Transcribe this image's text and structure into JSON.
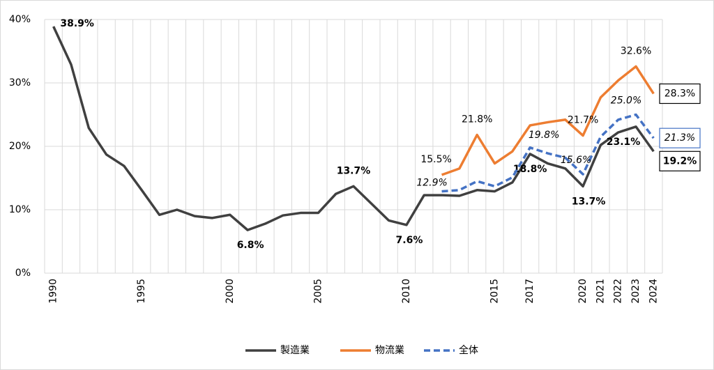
{
  "chart_data": {
    "type": "line",
    "x": [
      1990,
      1991,
      1992,
      1993,
      1994,
      1995,
      1996,
      1997,
      1998,
      1999,
      2000,
      2001,
      2002,
      2003,
      2004,
      2005,
      2006,
      2007,
      2008,
      2009,
      2010,
      2011,
      2012,
      2013,
      2014,
      2015,
      2016,
      2017,
      2018,
      2019,
      2020,
      2021,
      2022,
      2023,
      2024
    ],
    "xlim": [
      1989.5,
      2024.5
    ],
    "xticks": [
      1990,
      1995,
      2000,
      2005,
      2010,
      2015,
      2017,
      2020,
      2021,
      2022,
      2023,
      2024
    ],
    "ylim": [
      0,
      40
    ],
    "yticks": [
      {
        "value": 0,
        "label": "0%"
      },
      {
        "value": 10,
        "label": "10%"
      },
      {
        "value": 20,
        "label": "20%"
      },
      {
        "value": 30,
        "label": "30%"
      },
      {
        "value": 40,
        "label": "40%"
      }
    ],
    "grid": true,
    "legend": "bottom",
    "series": [
      {
        "name": "製造業",
        "color": "#404040",
        "dash": "solid",
        "values": [
          38.9,
          32.9,
          22.9,
          18.7,
          16.9,
          13.1,
          9.2,
          10.0,
          9.0,
          8.7,
          9.2,
          6.8,
          7.8,
          9.1,
          9.5,
          9.5,
          12.5,
          13.7,
          11.0,
          8.3,
          7.6,
          12.3,
          12.3,
          12.2,
          13.1,
          12.9,
          14.3,
          18.8,
          17.3,
          16.5,
          13.7,
          20.2,
          22.2,
          23.1,
          19.2
        ],
        "value_labels": [
          "38.9%",
          null,
          null,
          null,
          null,
          null,
          null,
          null,
          null,
          null,
          null,
          "6.8%",
          null,
          null,
          null,
          null,
          null,
          "13.7%",
          null,
          null,
          "7.6%",
          null,
          null,
          null,
          null,
          null,
          null,
          "18.8%",
          null,
          null,
          "13.7%",
          null,
          null,
          "23.1%",
          "19.2%"
        ]
      },
      {
        "name": "物流業",
        "color": "#ed7d31",
        "dash": "solid",
        "values": [
          null,
          null,
          null,
          null,
          null,
          null,
          null,
          null,
          null,
          null,
          null,
          null,
          null,
          null,
          null,
          null,
          null,
          null,
          null,
          null,
          null,
          null,
          15.5,
          16.5,
          21.8,
          17.3,
          19.2,
          23.3,
          23.8,
          24.2,
          21.7,
          27.7,
          30.4,
          32.6,
          28.3
        ],
        "value_labels": [
          null,
          null,
          null,
          null,
          null,
          null,
          null,
          null,
          null,
          null,
          null,
          null,
          null,
          null,
          null,
          null,
          null,
          null,
          null,
          null,
          null,
          null,
          "15.5%",
          null,
          "21.8%",
          null,
          null,
          null,
          null,
          null,
          "21.7%",
          null,
          null,
          "32.6%",
          "28.3%"
        ]
      },
      {
        "name": "全体",
        "color": "#4472c4",
        "dash": "dashed",
        "values": [
          null,
          null,
          null,
          null,
          null,
          null,
          null,
          null,
          null,
          null,
          null,
          null,
          null,
          null,
          null,
          null,
          null,
          null,
          null,
          null,
          null,
          null,
          12.9,
          13.1,
          14.5,
          13.7,
          15.1,
          19.8,
          18.9,
          18.2,
          15.6,
          21.5,
          24.2,
          25.0,
          21.3
        ],
        "value_labels": [
          null,
          null,
          null,
          null,
          null,
          null,
          null,
          null,
          null,
          null,
          null,
          null,
          null,
          null,
          null,
          null,
          null,
          null,
          null,
          null,
          null,
          null,
          "12.9%",
          null,
          null,
          null,
          null,
          "19.8%",
          null,
          null,
          "15.6%",
          null,
          null,
          "25.0%",
          "21.3%"
        ]
      }
    ]
  }
}
